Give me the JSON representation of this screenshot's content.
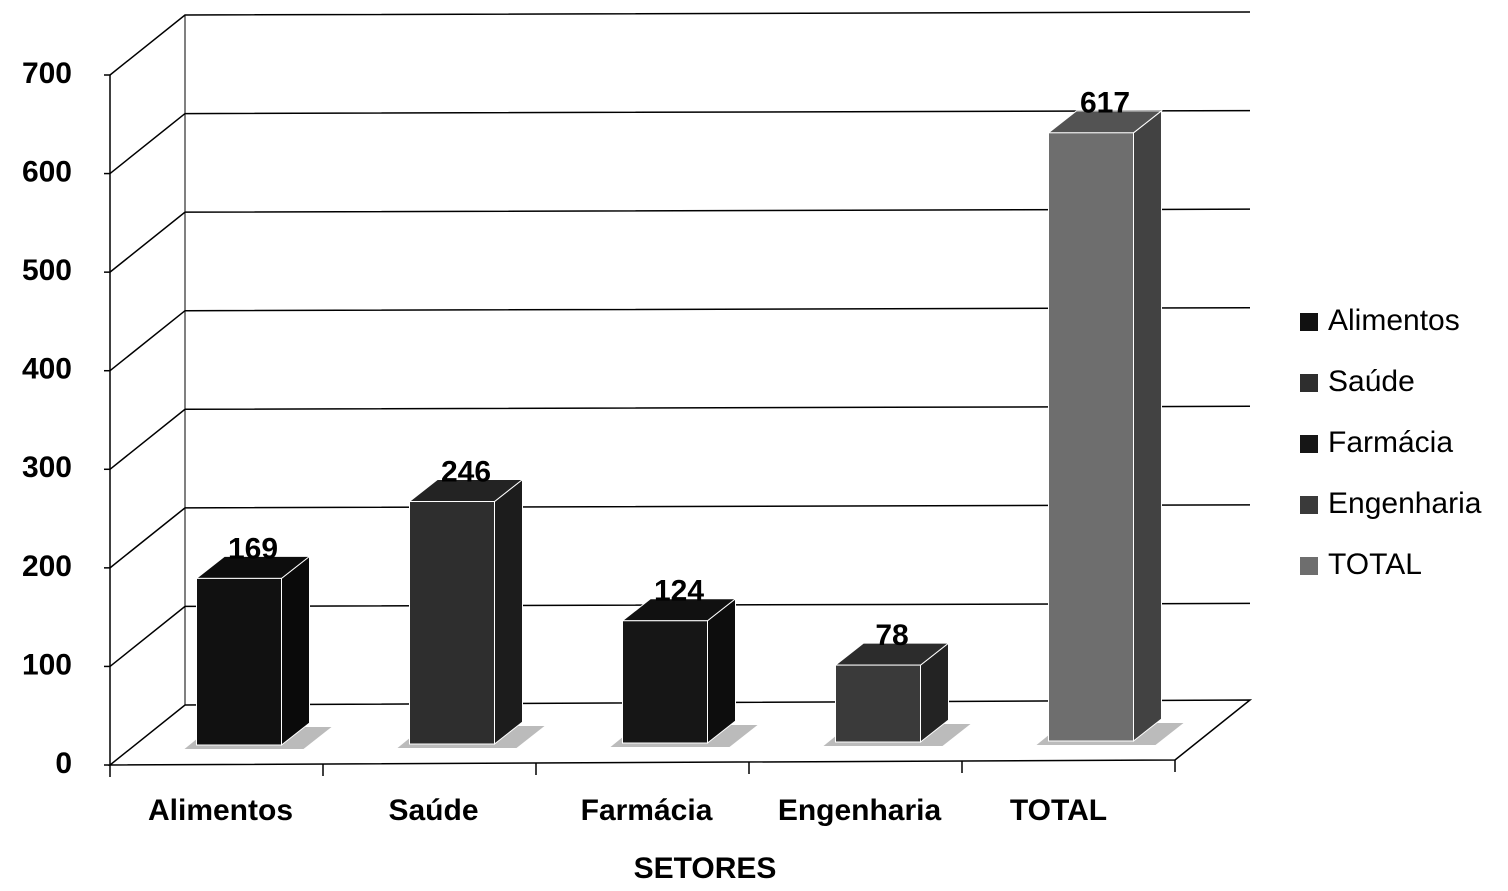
{
  "chart_data": {
    "type": "bar3d",
    "categories": [
      "Alimentos",
      "Saúde",
      "Farmácia",
      "Engenharia",
      "TOTAL"
    ],
    "values": [
      169,
      246,
      124,
      78,
      617
    ],
    "colors": [
      "#111111",
      "#2e2e2e",
      "#161616",
      "#3a3a3a",
      "#6e6e6e"
    ],
    "xlabel": "SETORES",
    "ylim": [
      0,
      700
    ],
    "yticks": [
      0,
      100,
      200,
      300,
      400,
      500,
      600,
      700
    ],
    "grid": true,
    "legend": "right"
  }
}
